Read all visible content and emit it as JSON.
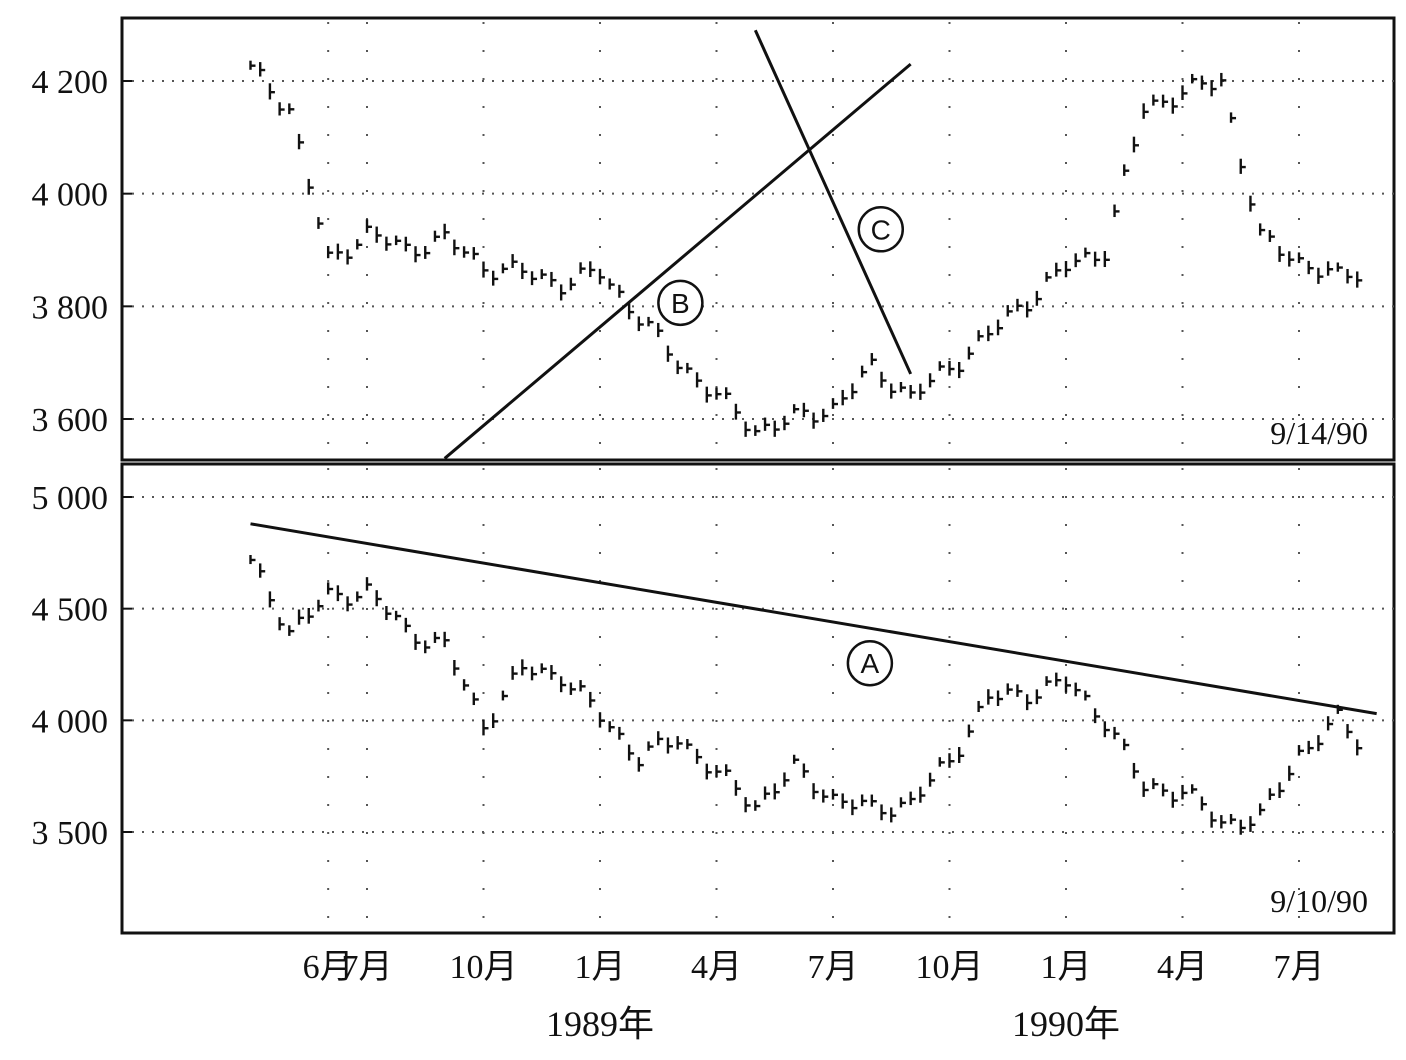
{
  "chart_data": [
    {
      "type": "bar",
      "subtype": "ohlc-price-bars",
      "panel": "top",
      "date_stamp": "9/14/90",
      "y_ticks": [
        {
          "value": 3600,
          "label": "3 600"
        },
        {
          "value": 3800,
          "label": "3 800"
        },
        {
          "value": 4000,
          "label": "4 000"
        },
        {
          "value": 4200,
          "label": "4 200"
        }
      ],
      "ylim": [
        3530,
        4310
      ],
      "grid": "dotted",
      "trendlines": [
        {
          "label": "B",
          "from": [
            "1989-09",
            3530
          ],
          "to": [
            "1990-09",
            4230
          ]
        },
        {
          "label": "C",
          "from": [
            "1990-05",
            4290
          ],
          "to": [
            "1990-09",
            3680
          ]
        }
      ],
      "series": [
        {
          "x": "1989-04",
          "close": 4220
        },
        {
          "x": "1989-05",
          "close": 4150
        },
        {
          "x": "1989-06",
          "close": 3880
        },
        {
          "x": "1989-07",
          "close": 3930
        },
        {
          "x": "1989-08",
          "close": 3900
        },
        {
          "x": "1989-09",
          "close": 3920
        },
        {
          "x": "1989-10",
          "close": 3870
        },
        {
          "x": "1989-11",
          "close": 3860
        },
        {
          "x": "1989-12",
          "close": 3840
        },
        {
          "x": "1990-01",
          "close": 3860
        },
        {
          "x": "1990-02",
          "close": 3780
        },
        {
          "x": "1990-03",
          "close": 3700
        },
        {
          "x": "1990-04",
          "close": 3640
        },
        {
          "x": "1990-05",
          "close": 3580
        },
        {
          "x": "1990-06",
          "close": 3600
        },
        {
          "x": "1990-07",
          "close": 3620
        },
        {
          "x": "1990-08",
          "close": 3690
        },
        {
          "x": "1990-09",
          "close": 3640
        },
        {
          "x": "1990-10",
          "close": 3690
        },
        {
          "x": "1990-11",
          "close": 3750
        },
        {
          "x": "1990-12",
          "close": 3810
        },
        {
          "x": "1991-01",
          "close": 3870
        },
        {
          "x": "1991-02",
          "close": 3900
        },
        {
          "x": "1991-03",
          "close": 4150
        },
        {
          "x": "1991-04",
          "close": 4180
        },
        {
          "x": "1991-05",
          "close": 4200
        },
        {
          "x": "1991-06",
          "close": 3920
        },
        {
          "x": "1991-07",
          "close": 3880
        },
        {
          "x": "1991-08",
          "close": 3850
        },
        {
          "x": "1991-09",
          "close": 3870
        }
      ]
    },
    {
      "type": "bar",
      "subtype": "ohlc-price-bars",
      "panel": "bottom",
      "date_stamp": "9/10/90",
      "y_ticks": [
        {
          "value": 3500,
          "label": "3 500"
        },
        {
          "value": 4000,
          "label": "4 000"
        },
        {
          "value": 4500,
          "label": "4 500"
        },
        {
          "value": 5000,
          "label": "5 000"
        }
      ],
      "ylim": [
        3050,
        5200
      ],
      "grid": "dotted",
      "trendlines": [
        {
          "label": "A",
          "from": [
            "1988-04",
            4880
          ],
          "to": [
            "1990-09",
            4030
          ]
        }
      ],
      "series": [
        {
          "x": "1988-04",
          "close": 4700
        },
        {
          "x": "1988-05",
          "close": 4400
        },
        {
          "x": "1988-06",
          "close": 4550
        },
        {
          "x": "1988-07",
          "close": 4580
        },
        {
          "x": "1988-08",
          "close": 4400
        },
        {
          "x": "1988-09",
          "close": 4330
        },
        {
          "x": "1988-10",
          "close": 3980
        },
        {
          "x": "1988-11",
          "close": 4230
        },
        {
          "x": "1988-12",
          "close": 4200
        },
        {
          "x": "1989-01",
          "close": 4020
        },
        {
          "x": "1989-02",
          "close": 3830
        },
        {
          "x": "1989-03",
          "close": 3920
        },
        {
          "x": "1989-04",
          "close": 3760
        },
        {
          "x": "1989-05",
          "close": 3620
        },
        {
          "x": "1989-06",
          "close": 3780
        },
        {
          "x": "1989-07",
          "close": 3650
        },
        {
          "x": "1989-08",
          "close": 3600
        },
        {
          "x": "1989-09",
          "close": 3630
        },
        {
          "x": "1989-10",
          "close": 3820
        },
        {
          "x": "1989-11",
          "close": 4100
        },
        {
          "x": "1989-12",
          "close": 4120
        },
        {
          "x": "1990-01",
          "close": 4170
        },
        {
          "x": "1990-02",
          "close": 4000
        },
        {
          "x": "1990-03",
          "close": 3700
        },
        {
          "x": "1990-04",
          "close": 3680
        },
        {
          "x": "1990-05",
          "close": 3540
        },
        {
          "x": "1990-06",
          "close": 3560
        },
        {
          "x": "1990-07",
          "close": 3850
        },
        {
          "x": "1990-08",
          "close": 4000
        },
        {
          "x": "1990-09",
          "close": 3820
        }
      ]
    }
  ],
  "x_axis": {
    "month_ticks": [
      {
        "x": "1988-06",
        "label": "6月"
      },
      {
        "x": "1988-07",
        "label": "7月"
      },
      {
        "x": "1988-10",
        "label": "10月"
      },
      {
        "x": "1989-01",
        "label": "1月"
      },
      {
        "x": "1989-04",
        "label": "4月"
      },
      {
        "x": "1989-07",
        "label": "7月"
      },
      {
        "x": "1989-10",
        "label": "10月"
      },
      {
        "x": "1990-01",
        "label": "1月"
      },
      {
        "x": "1990-04",
        "label": "4月"
      },
      {
        "x": "1990-07",
        "label": "7月"
      }
    ],
    "year_labels": [
      {
        "x": "1989-01",
        "label": "1989年"
      },
      {
        "x": "1990-01",
        "label": "1990年"
      }
    ]
  },
  "colors": {
    "ink": "#111111",
    "grid": "#555555",
    "background": "#ffffff"
  }
}
